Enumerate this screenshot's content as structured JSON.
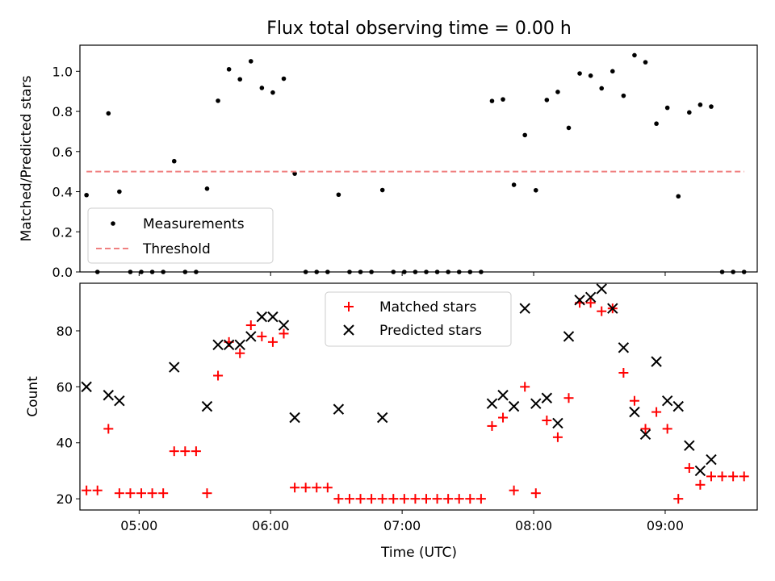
{
  "chart_data": [
    {
      "type": "scatter",
      "title": "Flux total observing time = 0.00 h",
      "xlabel": "",
      "ylabel": "Matched/Predicted stars",
      "xlim": [
        "04:33",
        "09:42"
      ],
      "ylim": [
        0,
        1.13
      ],
      "yticks": [
        "0.0",
        "0.2",
        "0.4",
        "0.6",
        "0.8",
        "1.0"
      ],
      "xticks": [
        "05:00",
        "06:00",
        "07:00",
        "08:00",
        "09:00"
      ],
      "xtick_labels_shown": false,
      "legend": "lower-left",
      "series": [
        {
          "name": "Measurements",
          "kind": "dot",
          "color": "#000000",
          "points": [
            {
              "x": "04:36",
              "y": 0.383
            },
            {
              "x": "04:41",
              "y": 0.0
            },
            {
              "x": "04:46",
              "y": 0.79
            },
            {
              "x": "04:51",
              "y": 0.4
            },
            {
              "x": "04:56",
              "y": 0.0
            },
            {
              "x": "05:01",
              "y": 0.0
            },
            {
              "x": "05:06",
              "y": 0.0
            },
            {
              "x": "05:11",
              "y": 0.0
            },
            {
              "x": "05:16",
              "y": 0.552
            },
            {
              "x": "05:21",
              "y": 0.0
            },
            {
              "x": "05:26",
              "y": 0.0
            },
            {
              "x": "05:31",
              "y": 0.415
            },
            {
              "x": "05:36",
              "y": 0.853
            },
            {
              "x": "05:41",
              "y": 1.01
            },
            {
              "x": "05:46",
              "y": 0.96
            },
            {
              "x": "05:51",
              "y": 1.05
            },
            {
              "x": "05:56",
              "y": 0.917
            },
            {
              "x": "06:01",
              "y": 0.894
            },
            {
              "x": "06:06",
              "y": 0.963
            },
            {
              "x": "06:11",
              "y": 0.49
            },
            {
              "x": "06:16",
              "y": 0.0
            },
            {
              "x": "06:21",
              "y": 0.0
            },
            {
              "x": "06:26",
              "y": 0.0
            },
            {
              "x": "06:31",
              "y": 0.385
            },
            {
              "x": "06:36",
              "y": 0.0
            },
            {
              "x": "06:41",
              "y": 0.0
            },
            {
              "x": "06:46",
              "y": 0.0
            },
            {
              "x": "06:51",
              "y": 0.408
            },
            {
              "x": "06:56",
              "y": 0.0
            },
            {
              "x": "07:01",
              "y": 0.0
            },
            {
              "x": "07:06",
              "y": 0.0
            },
            {
              "x": "07:11",
              "y": 0.0
            },
            {
              "x": "07:16",
              "y": 0.0
            },
            {
              "x": "07:21",
              "y": 0.0
            },
            {
              "x": "07:26",
              "y": 0.0
            },
            {
              "x": "07:31",
              "y": 0.0
            },
            {
              "x": "07:36",
              "y": 0.0
            },
            {
              "x": "07:41",
              "y": 0.852
            },
            {
              "x": "07:46",
              "y": 0.86
            },
            {
              "x": "07:51",
              "y": 0.434
            },
            {
              "x": "07:56",
              "y": 0.682
            },
            {
              "x": "08:01",
              "y": 0.407
            },
            {
              "x": "08:06",
              "y": 0.857
            },
            {
              "x": "08:11",
              "y": 0.897
            },
            {
              "x": "08:16",
              "y": 0.718
            },
            {
              "x": "08:21",
              "y": 0.989
            },
            {
              "x": "08:26",
              "y": 0.978
            },
            {
              "x": "08:31",
              "y": 0.915
            },
            {
              "x": "08:36",
              "y": 1.0
            },
            {
              "x": "08:41",
              "y": 0.878
            },
            {
              "x": "08:46",
              "y": 1.08
            },
            {
              "x": "08:51",
              "y": 1.045
            },
            {
              "x": "08:56",
              "y": 0.739
            },
            {
              "x": "09:01",
              "y": 0.818
            },
            {
              "x": "09:06",
              "y": 0.377
            },
            {
              "x": "09:11",
              "y": 0.795
            },
            {
              "x": "09:16",
              "y": 0.833
            },
            {
              "x": "09:21",
              "y": 0.824
            },
            {
              "x": "09:26",
              "y": 0.0
            },
            {
              "x": "09:31",
              "y": 0.0
            },
            {
              "x": "09:36",
              "y": 0.0
            }
          ]
        },
        {
          "name": "Threshold",
          "kind": "dashed-line",
          "color": "#f08080",
          "points": [
            {
              "x": "04:36",
              "y": 0.5
            },
            {
              "x": "09:36",
              "y": 0.5
            }
          ]
        }
      ]
    },
    {
      "type": "scatter",
      "title": "",
      "xlabel": "Time (UTC)",
      "ylabel": "Count",
      "xlim": [
        "04:33",
        "09:42"
      ],
      "ylim": [
        16,
        97
      ],
      "yticks": [
        "20",
        "40",
        "60",
        "80"
      ],
      "xticks": [
        "05:00",
        "06:00",
        "07:00",
        "08:00",
        "09:00"
      ],
      "xtick_labels_shown": true,
      "legend": "top-center",
      "series": [
        {
          "name": "Matched stars",
          "kind": "plus",
          "color": "#ff0000",
          "points": [
            {
              "x": "04:36",
              "y": 23
            },
            {
              "x": "04:41",
              "y": 23
            },
            {
              "x": "04:46",
              "y": 45
            },
            {
              "x": "04:51",
              "y": 22
            },
            {
              "x": "04:56",
              "y": 22
            },
            {
              "x": "05:01",
              "y": 22
            },
            {
              "x": "05:06",
              "y": 22
            },
            {
              "x": "05:11",
              "y": 22
            },
            {
              "x": "05:16",
              "y": 37
            },
            {
              "x": "05:21",
              "y": 37
            },
            {
              "x": "05:26",
              "y": 37
            },
            {
              "x": "05:31",
              "y": 22
            },
            {
              "x": "05:36",
              "y": 64
            },
            {
              "x": "05:41",
              "y": 76
            },
            {
              "x": "05:46",
              "y": 72
            },
            {
              "x": "05:51",
              "y": 82
            },
            {
              "x": "05:56",
              "y": 78
            },
            {
              "x": "06:01",
              "y": 76
            },
            {
              "x": "06:06",
              "y": 79
            },
            {
              "x": "06:11",
              "y": 24
            },
            {
              "x": "06:16",
              "y": 24
            },
            {
              "x": "06:21",
              "y": 24
            },
            {
              "x": "06:26",
              "y": 24
            },
            {
              "x": "06:31",
              "y": 20
            },
            {
              "x": "06:36",
              "y": 20
            },
            {
              "x": "06:41",
              "y": 20
            },
            {
              "x": "06:46",
              "y": 20
            },
            {
              "x": "06:51",
              "y": 20
            },
            {
              "x": "06:56",
              "y": 20
            },
            {
              "x": "07:01",
              "y": 20
            },
            {
              "x": "07:06",
              "y": 20
            },
            {
              "x": "07:11",
              "y": 20
            },
            {
              "x": "07:16",
              "y": 20
            },
            {
              "x": "07:21",
              "y": 20
            },
            {
              "x": "07:26",
              "y": 20
            },
            {
              "x": "07:31",
              "y": 20
            },
            {
              "x": "07:36",
              "y": 20
            },
            {
              "x": "07:41",
              "y": 46
            },
            {
              "x": "07:46",
              "y": 49
            },
            {
              "x": "07:51",
              "y": 23
            },
            {
              "x": "07:56",
              "y": 60
            },
            {
              "x": "08:01",
              "y": 22
            },
            {
              "x": "08:06",
              "y": 48
            },
            {
              "x": "08:11",
              "y": 42
            },
            {
              "x": "08:16",
              "y": 56
            },
            {
              "x": "08:21",
              "y": 90
            },
            {
              "x": "08:26",
              "y": 90
            },
            {
              "x": "08:31",
              "y": 87
            },
            {
              "x": "08:36",
              "y": 88
            },
            {
              "x": "08:41",
              "y": 65
            },
            {
              "x": "08:46",
              "y": 55
            },
            {
              "x": "08:51",
              "y": 45
            },
            {
              "x": "08:56",
              "y": 51
            },
            {
              "x": "09:01",
              "y": 45
            },
            {
              "x": "09:06",
              "y": 20
            },
            {
              "x": "09:11",
              "y": 31
            },
            {
              "x": "09:16",
              "y": 25
            },
            {
              "x": "09:21",
              "y": 28
            },
            {
              "x": "09:26",
              "y": 28
            },
            {
              "x": "09:31",
              "y": 28
            },
            {
              "x": "09:36",
              "y": 28
            }
          ]
        },
        {
          "name": "Predicted stars",
          "kind": "cross",
          "color": "#000000",
          "points": [
            {
              "x": "04:36",
              "y": 60
            },
            {
              "x": "04:46",
              "y": 57
            },
            {
              "x": "04:51",
              "y": 55
            },
            {
              "x": "05:16",
              "y": 67
            },
            {
              "x": "05:31",
              "y": 53
            },
            {
              "x": "05:36",
              "y": 75
            },
            {
              "x": "05:41",
              "y": 75
            },
            {
              "x": "05:46",
              "y": 75
            },
            {
              "x": "05:51",
              "y": 78
            },
            {
              "x": "05:56",
              "y": 85
            },
            {
              "x": "06:01",
              "y": 85
            },
            {
              "x": "06:06",
              "y": 82
            },
            {
              "x": "06:11",
              "y": 49
            },
            {
              "x": "06:31",
              "y": 52
            },
            {
              "x": "06:51",
              "y": 49
            },
            {
              "x": "07:41",
              "y": 54
            },
            {
              "x": "07:46",
              "y": 57
            },
            {
              "x": "07:51",
              "y": 53
            },
            {
              "x": "07:56",
              "y": 88
            },
            {
              "x": "08:01",
              "y": 54
            },
            {
              "x": "08:06",
              "y": 56
            },
            {
              "x": "08:11",
              "y": 47
            },
            {
              "x": "08:16",
              "y": 78
            },
            {
              "x": "08:21",
              "y": 91
            },
            {
              "x": "08:26",
              "y": 92
            },
            {
              "x": "08:31",
              "y": 95
            },
            {
              "x": "08:36",
              "y": 88
            },
            {
              "x": "08:41",
              "y": 74
            },
            {
              "x": "08:46",
              "y": 51
            },
            {
              "x": "08:51",
              "y": 43
            },
            {
              "x": "08:56",
              "y": 69
            },
            {
              "x": "09:01",
              "y": 55
            },
            {
              "x": "09:06",
              "y": 53
            },
            {
              "x": "09:11",
              "y": 39
            },
            {
              "x": "09:16",
              "y": 30
            },
            {
              "x": "09:21",
              "y": 34
            }
          ]
        }
      ]
    }
  ]
}
